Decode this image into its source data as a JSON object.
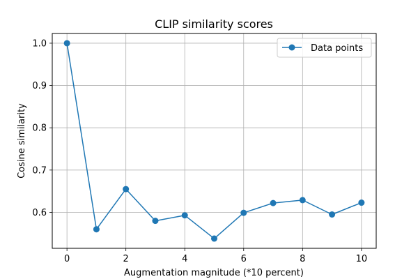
{
  "chart_data": {
    "type": "line",
    "title": "CLIP similarity scores",
    "xlabel": "Augmentation magnitude (*10 percent)",
    "ylabel": "Cosine similarity",
    "x": [
      0,
      1,
      2,
      3,
      4,
      5,
      6,
      7,
      8,
      9,
      10
    ],
    "series": [
      {
        "name": "Data points",
        "values": [
          1.0,
          0.56,
          0.655,
          0.58,
          0.593,
          0.538,
          0.599,
          0.622,
          0.629,
          0.595,
          0.623
        ],
        "color": "#1f77b4",
        "marker": "circle"
      }
    ],
    "xlim": [
      -0.5,
      10.5
    ],
    "ylim": [
      0.515,
      1.023
    ],
    "xticks": [
      0,
      2,
      4,
      6,
      8,
      10
    ],
    "xtick_labels": [
      "0",
      "2",
      "4",
      "6",
      "8",
      "10"
    ],
    "yticks": [
      0.6,
      0.7,
      0.8,
      0.9,
      1.0
    ],
    "ytick_labels": [
      "0.6",
      "0.7",
      "0.8",
      "0.9",
      "1.0"
    ],
    "grid": true,
    "legend": "top-right"
  }
}
